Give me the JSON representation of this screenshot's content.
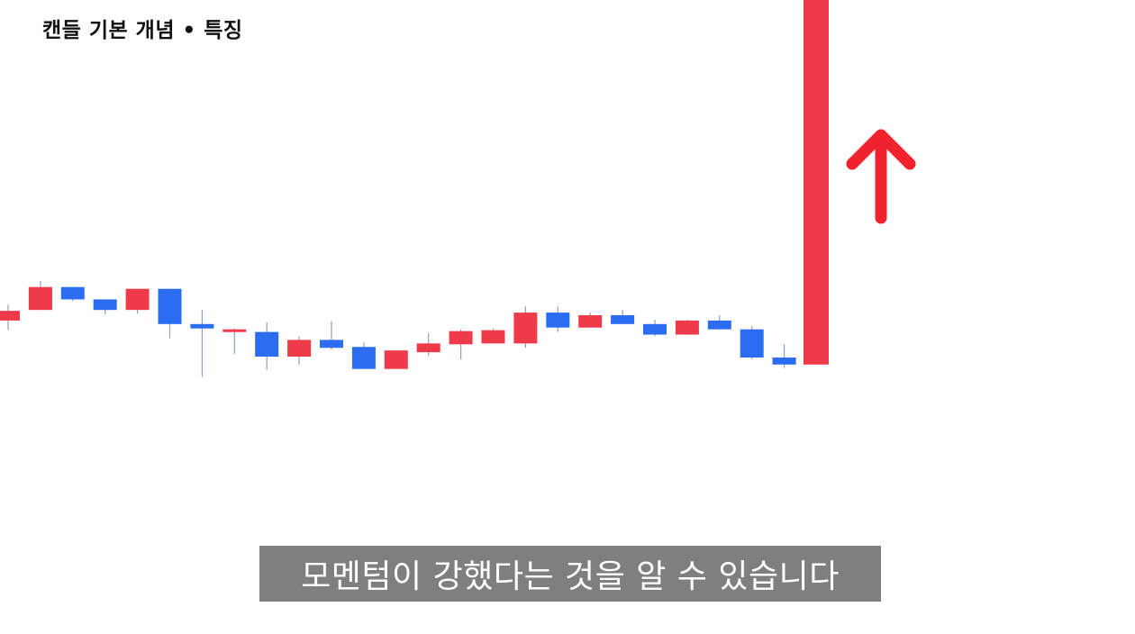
{
  "header": {
    "title": "캔들 기본 개념 • 특징"
  },
  "subtitle": {
    "text": "모멘텀이 강했다는 것을 알 수 있습니다"
  },
  "colors": {
    "up": "#ef3a4a",
    "down": "#2b6cf0",
    "wick": "#8aa0c8",
    "arrow": "#f0222e",
    "caption_bg": "#7f7f7f"
  },
  "annotation": {
    "icon": "up-arrow-icon",
    "direction": "up"
  },
  "chart_data": {
    "type": "candlestick",
    "grid": false,
    "legend": "none",
    "ylim": [
      -20,
      700
    ],
    "candles": [
      {
        "o": 336,
        "h": 354,
        "l": 325,
        "c": 347
      },
      {
        "o": 348,
        "h": 381,
        "l": 348,
        "c": 374
      },
      {
        "o": 374,
        "h": 374,
        "l": 358,
        "c": 360
      },
      {
        "o": 360,
        "h": 360,
        "l": 343,
        "c": 348
      },
      {
        "o": 348,
        "h": 370,
        "l": 344,
        "c": 372
      },
      {
        "o": 372,
        "h": 372,
        "l": 316,
        "c": 332
      },
      {
        "o": 332,
        "h": 348,
        "l": 272,
        "c": 327
      },
      {
        "o": 324,
        "h": 327,
        "l": 298,
        "c": 326
      },
      {
        "o": 323,
        "h": 334,
        "l": 280,
        "c": 295
      },
      {
        "o": 295,
        "h": 318,
        "l": 286,
        "c": 314
      },
      {
        "o": 314,
        "h": 335,
        "l": 303,
        "c": 305
      },
      {
        "o": 306,
        "h": 311,
        "l": 282,
        "c": 281
      },
      {
        "o": 281,
        "h": 301,
        "l": 281,
        "c": 302
      },
      {
        "o": 300,
        "h": 322,
        "l": 296,
        "c": 310
      },
      {
        "o": 309,
        "h": 326,
        "l": 292,
        "c": 324
      },
      {
        "o": 310,
        "h": 327,
        "l": 310,
        "c": 325
      },
      {
        "o": 310,
        "h": 352,
        "l": 305,
        "c": 345
      },
      {
        "o": 345,
        "h": 352,
        "l": 323,
        "c": 328
      },
      {
        "o": 328,
        "h": 345,
        "l": 328,
        "c": 342
      },
      {
        "o": 342,
        "h": 348,
        "l": 332,
        "c": 332
      },
      {
        "o": 332,
        "h": 337,
        "l": 318,
        "c": 320
      },
      {
        "o": 320,
        "h": 337,
        "l": 320,
        "c": 336
      },
      {
        "o": 336,
        "h": 342,
        "l": 326,
        "c": 326
      },
      {
        "o": 326,
        "h": 330,
        "l": 292,
        "c": 294
      },
      {
        "o": 294,
        "h": 309,
        "l": 282,
        "c": 286
      },
      {
        "o": 286,
        "h": 705,
        "l": 286,
        "c": 705
      }
    ]
  }
}
